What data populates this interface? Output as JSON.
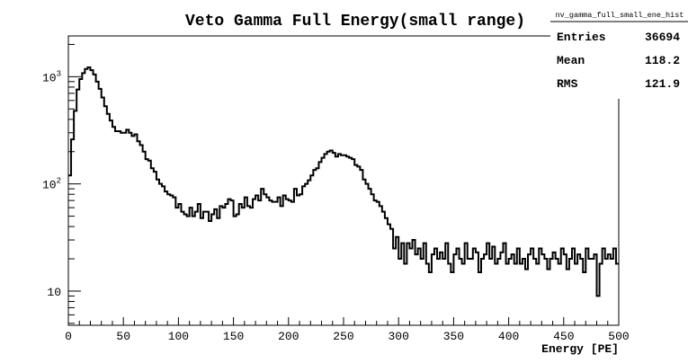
{
  "chart_data": {
    "type": "histogram",
    "title": "Veto Gamma Full Energy(small range)",
    "xlabel": "Energy [PE]",
    "ylabel": "",
    "xlim": [
      0,
      500
    ],
    "ylim": [
      4.8,
      2400
    ],
    "y_scale": "log",
    "grid": false,
    "bin_width": 2.5,
    "x_ticks": [
      0,
      50,
      100,
      150,
      200,
      250,
      300,
      350,
      400,
      450,
      500
    ],
    "x_tick_labels": [
      "0",
      "50",
      "100",
      "150",
      "200",
      "250",
      "300",
      "350",
      "400",
      "450",
      "500"
    ],
    "y_ticks": [
      10,
      100,
      1000
    ],
    "y_tick_labels": [
      {
        "base": "10",
        "exp": ""
      },
      {
        "base": "10",
        "exp": "2"
      },
      {
        "base": "10",
        "exp": "3"
      }
    ],
    "line_color": "#000000",
    "counts": [
      120,
      260,
      480,
      760,
      950,
      1080,
      1180,
      1220,
      1150,
      1050,
      900,
      770,
      640,
      530,
      450,
      390,
      340,
      310,
      310,
      300,
      300,
      320,
      300,
      280,
      290,
      250,
      230,
      200,
      170,
      165,
      140,
      130,
      110,
      100,
      95,
      85,
      80,
      78,
      75,
      60,
      65,
      55,
      52,
      50,
      60,
      50,
      55,
      65,
      48,
      55,
      55,
      45,
      52,
      58,
      48,
      62,
      60,
      65,
      72,
      70,
      50,
      52,
      65,
      60,
      75,
      62,
      60,
      72,
      78,
      70,
      90,
      80,
      75,
      70,
      68,
      68,
      75,
      62,
      78,
      72,
      70,
      68,
      90,
      78,
      80,
      95,
      100,
      108,
      120,
      135,
      140,
      160,
      175,
      190,
      200,
      205,
      195,
      180,
      190,
      185,
      185,
      180,
      175,
      170,
      150,
      145,
      135,
      110,
      100,
      90,
      80,
      70,
      68,
      62,
      55,
      48,
      42,
      38,
      25,
      32,
      20,
      28,
      18,
      28,
      25,
      30,
      22,
      25,
      20,
      28,
      18,
      15,
      22,
      25,
      20,
      23,
      20,
      28,
      18,
      15,
      22,
      25,
      20,
      18,
      28,
      20,
      20,
      25,
      23,
      15,
      20,
      22,
      28,
      20,
      26,
      18,
      20,
      23,
      28,
      18,
      20,
      22,
      18,
      25,
      18,
      20,
      16,
      22,
      25,
      20,
      18,
      25,
      22,
      20,
      16,
      20,
      23,
      20,
      18,
      25,
      22,
      16,
      20,
      25,
      18,
      22,
      20,
      15,
      25,
      20,
      20,
      22,
      9,
      18,
      25,
      20,
      22,
      20,
      25,
      18
    ],
    "stats": {
      "name": "nv_gamma_full_small_ene_hist",
      "rows": [
        {
          "label": "Entries",
          "value": "36694"
        },
        {
          "label": "Mean",
          "value": "118.2"
        },
        {
          "label": "RMS",
          "value": "121.9"
        }
      ]
    }
  }
}
